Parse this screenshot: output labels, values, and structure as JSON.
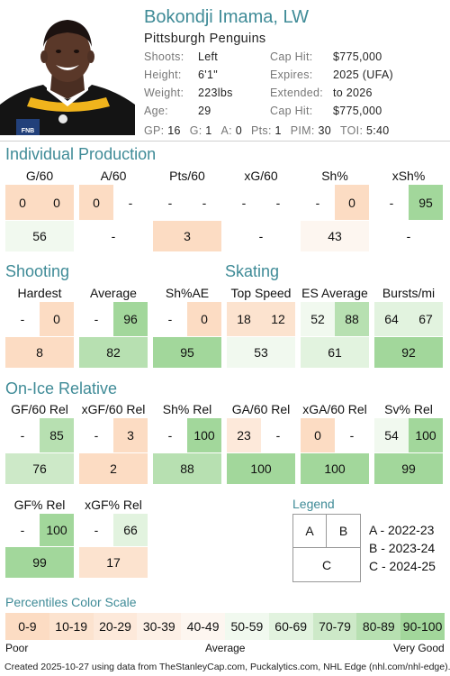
{
  "player": {
    "name": "Bokondji Imama, LW",
    "team": "Pittsburgh Penguins",
    "photo_badge": "FNB",
    "info": [
      {
        "label": "Shoots:",
        "value": "Left"
      },
      {
        "label": "Height:",
        "value": "6'1\""
      },
      {
        "label": "Weight:",
        "value": "223lbs"
      },
      {
        "label": "Age:",
        "value": "29"
      }
    ],
    "contract": [
      {
        "label": "Cap Hit:",
        "value": "$775,000"
      },
      {
        "label": "Expires:",
        "value": "2025 (UFA)"
      },
      {
        "label": "Extended:",
        "value": "to 2026"
      },
      {
        "label": "Cap Hit:",
        "value": "$775,000"
      }
    ],
    "stats": [
      {
        "label": "GP:",
        "value": "16"
      },
      {
        "label": "G:",
        "value": "1"
      },
      {
        "label": "A:",
        "value": "0"
      },
      {
        "label": "Pts:",
        "value": "1"
      },
      {
        "label": "PIM:",
        "value": "30"
      },
      {
        "label": "TOI:",
        "value": "5:40"
      }
    ]
  },
  "colors": {
    "accent": "#3f8b97",
    "scale": [
      "#fcdcc3",
      "#fce3cf",
      "#fde9da",
      "#fdf0e6",
      "#fdf6f0",
      "#f1f9ef",
      "#e2f3df",
      "#cde9c8",
      "#b7e0b1",
      "#a2d79b"
    ]
  },
  "sections": {
    "individual": {
      "title": "Individual Production",
      "metrics": [
        {
          "label": "G/60",
          "a": "0",
          "b": "0",
          "c": "56",
          "pa": 0,
          "pb": 0,
          "pc": 56
        },
        {
          "label": "A/60",
          "a": "0",
          "b": "-",
          "c": "-",
          "pa": 0,
          "pb": null,
          "pc": null
        },
        {
          "label": "Pts/60",
          "a": "-",
          "b": "-",
          "c": "3",
          "pa": null,
          "pb": null,
          "pc": 3
        },
        {
          "label": "xG/60",
          "a": "-",
          "b": "-",
          "c": "-",
          "pa": null,
          "pb": null,
          "pc": null
        },
        {
          "label": "Sh%",
          "a": "-",
          "b": "0",
          "c": "43",
          "pa": null,
          "pb": 0,
          "pc": 43
        },
        {
          "label": "xSh%",
          "a": "-",
          "b": "95",
          "c": "-",
          "pa": null,
          "pb": 95,
          "pc": null
        }
      ]
    },
    "shooting": {
      "title": "Shooting",
      "metrics": [
        {
          "label": "Hardest",
          "a": "-",
          "b": "0",
          "c": "8",
          "pa": null,
          "pb": 0,
          "pc": 8
        },
        {
          "label": "Average",
          "a": "-",
          "b": "96",
          "c": "82",
          "pa": null,
          "pb": 96,
          "pc": 82
        },
        {
          "label": "Sh%AE",
          "a": "-",
          "b": "0",
          "c": "95",
          "pa": null,
          "pb": 0,
          "pc": 95
        }
      ]
    },
    "skating": {
      "title": "Skating",
      "metrics": [
        {
          "label": "Top Speed",
          "a": "18",
          "b": "12",
          "c": "53",
          "pa": 18,
          "pb": 12,
          "pc": 53
        },
        {
          "label": "ES Average",
          "a": "52",
          "b": "88",
          "c": "61",
          "pa": 52,
          "pb": 88,
          "pc": 61
        },
        {
          "label": "Bursts/mi",
          "a": "64",
          "b": "67",
          "c": "92",
          "pa": 64,
          "pb": 67,
          "pc": 92
        }
      ]
    },
    "onice": {
      "title": "On-Ice Relative",
      "metrics": [
        {
          "label": "GF/60 Rel",
          "a": "-",
          "b": "85",
          "c": "76",
          "pa": null,
          "pb": 85,
          "pc": 76
        },
        {
          "label": "xGF/60 Rel",
          "a": "-",
          "b": "3",
          "c": "2",
          "pa": null,
          "pb": 3,
          "pc": 2
        },
        {
          "label": "Sh% Rel",
          "a": "-",
          "b": "100",
          "c": "88",
          "pa": null,
          "pb": 100,
          "pc": 88
        },
        {
          "label": "GA/60 Rel",
          "a": "23",
          "b": "-",
          "c": "100",
          "pa": 23,
          "pb": null,
          "pc": 100
        },
        {
          "label": "xGA/60 Rel",
          "a": "0",
          "b": "-",
          "c": "100",
          "pa": 0,
          "pb": null,
          "pc": 100
        },
        {
          "label": "Sv% Rel",
          "a": "54",
          "b": "100",
          "c": "99",
          "pa": 54,
          "pb": 100,
          "pc": 99
        },
        {
          "label": "GF% Rel",
          "a": "-",
          "b": "100",
          "c": "99",
          "pa": null,
          "pb": 100,
          "pc": 99
        },
        {
          "label": "xGF% Rel",
          "a": "-",
          "b": "66",
          "c": "17",
          "pa": null,
          "pb": 66,
          "pc": 17
        }
      ]
    }
  },
  "legend": {
    "title": "Legend",
    "boxes": {
      "a": "A",
      "b": "B",
      "c": "C"
    },
    "items": [
      "A - 2022-23",
      "B - 2023-24",
      "C - 2024-25"
    ]
  },
  "scale": {
    "title": "Percentiles Color Scale",
    "labels": [
      "0-9",
      "10-19",
      "20-29",
      "30-39",
      "40-49",
      "50-59",
      "60-69",
      "70-79",
      "80-89",
      "90-100"
    ],
    "poor": "Poor",
    "average": "Average",
    "very_good": "Very Good"
  },
  "footer": "Created 2025-10-27 using data from TheStanleyCap.com, Puckalytics.com, NHL Edge (nhl.com/nhl-edge)."
}
